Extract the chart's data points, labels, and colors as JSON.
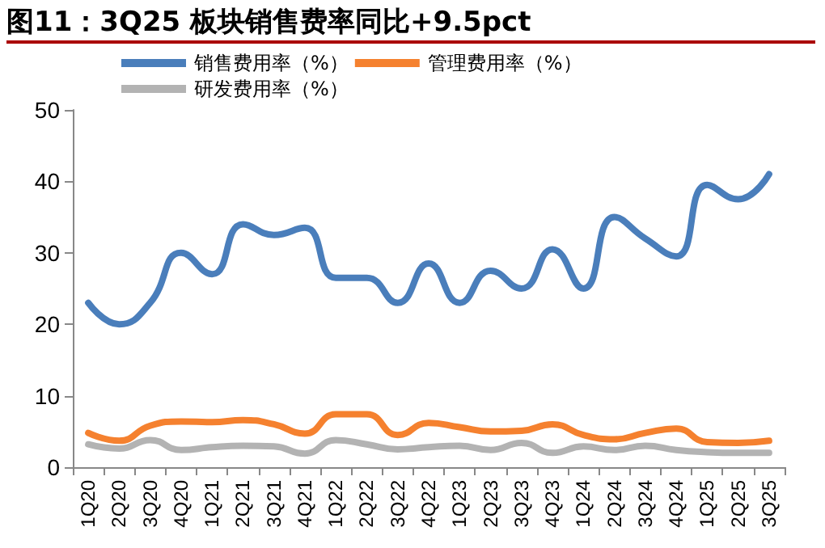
{
  "chart_data": {
    "type": "line",
    "title": "图11：3Q25 板块销售费率同比+9.5pct",
    "categories": [
      "1Q20",
      "2Q20",
      "3Q20",
      "4Q20",
      "1Q21",
      "2Q21",
      "3Q21",
      "4Q21",
      "1Q22",
      "2Q22",
      "3Q22",
      "4Q22",
      "1Q23",
      "2Q23",
      "3Q23",
      "4Q23",
      "1Q24",
      "2Q24",
      "3Q24",
      "4Q24",
      "1Q25",
      "2Q25",
      "3Q25"
    ],
    "series": [
      {
        "name": "销售费用率（%）",
        "color": "#4a7ebb",
        "values": [
          23,
          20,
          23,
          30,
          27,
          34,
          32.5,
          33.5,
          26.5,
          26.5,
          23,
          28.5,
          23,
          27.5,
          25,
          30.5,
          25,
          35,
          32,
          29.5,
          39.5,
          37.5,
          41
        ]
      },
      {
        "name": "管理费用率（%）",
        "color": "#f5812f",
        "values": [
          4.8,
          3.7,
          5.8,
          6.4,
          6.3,
          6.6,
          6,
          4.7,
          7.4,
          7.4,
          4.5,
          6.2,
          5.6,
          5,
          5.1,
          6,
          4.5,
          3.9,
          4.8,
          5.4,
          3.5,
          3.4,
          3.7
        ]
      },
      {
        "name": "研发费用率（%）",
        "color": "#b3b3b3",
        "values": [
          3.2,
          2.6,
          3.8,
          2.4,
          2.8,
          3,
          2.9,
          1.9,
          3.8,
          3.2,
          2.5,
          2.8,
          3,
          2.4,
          3.4,
          2,
          2.9,
          2.4,
          3,
          2.4,
          2.1,
          2,
          2
        ]
      }
    ],
    "ylim": [
      0,
      50
    ],
    "yticks": [
      0,
      10,
      20,
      30,
      40,
      50
    ],
    "grid": false,
    "legend": "top",
    "marker": "none",
    "line_style": "solid"
  }
}
